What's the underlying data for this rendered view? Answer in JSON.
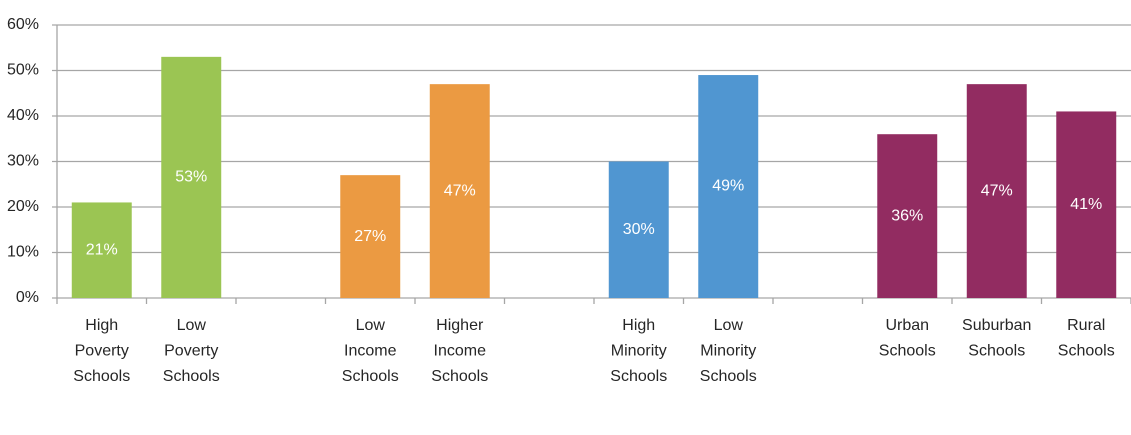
{
  "chart_data": {
    "type": "bar",
    "categories": [
      "High Poverty Schools",
      "Low Poverty Schools",
      null,
      "Low Income Schools",
      "Higher Income Schools",
      null,
      "High Minority Schools",
      "Low Minority Schools",
      null,
      "Urban Schools",
      "Suburban Schools",
      "Rural Schools"
    ],
    "values": [
      21,
      53,
      null,
      27,
      47,
      null,
      30,
      49,
      null,
      36,
      47,
      41
    ],
    "value_labels": [
      "21%",
      "53%",
      null,
      "27%",
      "47%",
      null,
      "30%",
      "49%",
      null,
      "36%",
      "47%",
      "41%"
    ],
    "colors": [
      "#9bc553",
      "#9bc553",
      null,
      "#eb9a42",
      "#eb9a42",
      null,
      "#5096d1",
      "#5096d1",
      null,
      "#922c61",
      "#922c61",
      "#922c61"
    ],
    "ylim": [
      0,
      60
    ],
    "yticks": [
      {
        "value": 0,
        "label": "0%"
      },
      {
        "value": 10,
        "label": "10%"
      },
      {
        "value": 20,
        "label": "20%"
      },
      {
        "value": 30,
        "label": "30%"
      },
      {
        "value": 40,
        "label": "40%"
      },
      {
        "value": 50,
        "label": "50%"
      },
      {
        "value": 60,
        "label": "60%"
      }
    ],
    "grid": true
  }
}
